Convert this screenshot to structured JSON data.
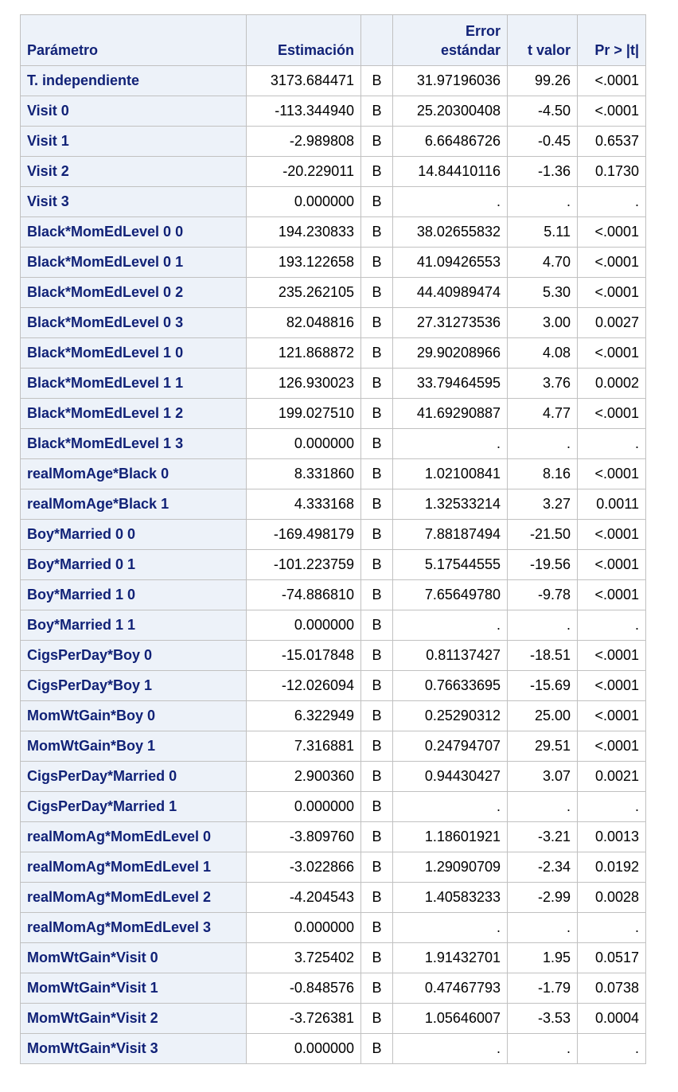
{
  "headers": {
    "parameter": "Parámetro",
    "estimate": "Estimación",
    "flag": "",
    "stderr_line1": "Error",
    "stderr_line2": "estándar",
    "tvalue": "t valor",
    "pvalue": "Pr > |t|"
  },
  "rows": [
    {
      "param": "T. independiente",
      "estimate": "3173.684471",
      "flag": "B",
      "stderr": "31.97196036",
      "t": "99.26",
      "p": "<.0001"
    },
    {
      "param": "Visit 0",
      "estimate": "-113.344940",
      "flag": "B",
      "stderr": "25.20300408",
      "t": "-4.50",
      "p": "<.0001"
    },
    {
      "param": "Visit 1",
      "estimate": "-2.989808",
      "flag": "B",
      "stderr": "6.66486726",
      "t": "-0.45",
      "p": "0.6537"
    },
    {
      "param": "Visit 2",
      "estimate": "-20.229011",
      "flag": "B",
      "stderr": "14.84410116",
      "t": "-1.36",
      "p": "0.1730"
    },
    {
      "param": "Visit 3",
      "estimate": "0.000000",
      "flag": "B",
      "stderr": ".",
      "t": ".",
      "p": "."
    },
    {
      "param": "Black*MomEdLevel 0 0",
      "estimate": "194.230833",
      "flag": "B",
      "stderr": "38.02655832",
      "t": "5.11",
      "p": "<.0001"
    },
    {
      "param": "Black*MomEdLevel 0 1",
      "estimate": "193.122658",
      "flag": "B",
      "stderr": "41.09426553",
      "t": "4.70",
      "p": "<.0001"
    },
    {
      "param": "Black*MomEdLevel 0 2",
      "estimate": "235.262105",
      "flag": "B",
      "stderr": "44.40989474",
      "t": "5.30",
      "p": "<.0001"
    },
    {
      "param": "Black*MomEdLevel 0 3",
      "estimate": "82.048816",
      "flag": "B",
      "stderr": "27.31273536",
      "t": "3.00",
      "p": "0.0027"
    },
    {
      "param": "Black*MomEdLevel 1 0",
      "estimate": "121.868872",
      "flag": "B",
      "stderr": "29.90208966",
      "t": "4.08",
      "p": "<.0001"
    },
    {
      "param": "Black*MomEdLevel 1 1",
      "estimate": "126.930023",
      "flag": "B",
      "stderr": "33.79464595",
      "t": "3.76",
      "p": "0.0002"
    },
    {
      "param": "Black*MomEdLevel 1 2",
      "estimate": "199.027510",
      "flag": "B",
      "stderr": "41.69290887",
      "t": "4.77",
      "p": "<.0001"
    },
    {
      "param": "Black*MomEdLevel 1 3",
      "estimate": "0.000000",
      "flag": "B",
      "stderr": ".",
      "t": ".",
      "p": "."
    },
    {
      "param": "realMomAge*Black 0",
      "estimate": "8.331860",
      "flag": "B",
      "stderr": "1.02100841",
      "t": "8.16",
      "p": "<.0001"
    },
    {
      "param": "realMomAge*Black 1",
      "estimate": "4.333168",
      "flag": "B",
      "stderr": "1.32533214",
      "t": "3.27",
      "p": "0.0011"
    },
    {
      "param": "Boy*Married 0 0",
      "estimate": "-169.498179",
      "flag": "B",
      "stderr": "7.88187494",
      "t": "-21.50",
      "p": "<.0001"
    },
    {
      "param": "Boy*Married 0 1",
      "estimate": "-101.223759",
      "flag": "B",
      "stderr": "5.17544555",
      "t": "-19.56",
      "p": "<.0001"
    },
    {
      "param": "Boy*Married 1 0",
      "estimate": "-74.886810",
      "flag": "B",
      "stderr": "7.65649780",
      "t": "-9.78",
      "p": "<.0001"
    },
    {
      "param": "Boy*Married 1 1",
      "estimate": "0.000000",
      "flag": "B",
      "stderr": ".",
      "t": ".",
      "p": "."
    },
    {
      "param": "CigsPerDay*Boy 0",
      "estimate": "-15.017848",
      "flag": "B",
      "stderr": "0.81137427",
      "t": "-18.51",
      "p": "<.0001"
    },
    {
      "param": "CigsPerDay*Boy 1",
      "estimate": "-12.026094",
      "flag": "B",
      "stderr": "0.76633695",
      "t": "-15.69",
      "p": "<.0001"
    },
    {
      "param": "MomWtGain*Boy 0",
      "estimate": "6.322949",
      "flag": "B",
      "stderr": "0.25290312",
      "t": "25.00",
      "p": "<.0001"
    },
    {
      "param": "MomWtGain*Boy 1",
      "estimate": "7.316881",
      "flag": "B",
      "stderr": "0.24794707",
      "t": "29.51",
      "p": "<.0001"
    },
    {
      "param": "CigsPerDay*Married 0",
      "estimate": "2.900360",
      "flag": "B",
      "stderr": "0.94430427",
      "t": "3.07",
      "p": "0.0021"
    },
    {
      "param": "CigsPerDay*Married 1",
      "estimate": "0.000000",
      "flag": "B",
      "stderr": ".",
      "t": ".",
      "p": "."
    },
    {
      "param": "realMomAg*MomEdLevel 0",
      "estimate": "-3.809760",
      "flag": "B",
      "stderr": "1.18601921",
      "t": "-3.21",
      "p": "0.0013"
    },
    {
      "param": "realMomAg*MomEdLevel 1",
      "estimate": "-3.022866",
      "flag": "B",
      "stderr": "1.29090709",
      "t": "-2.34",
      "p": "0.0192"
    },
    {
      "param": "realMomAg*MomEdLevel 2",
      "estimate": "-4.204543",
      "flag": "B",
      "stderr": "1.40583233",
      "t": "-2.99",
      "p": "0.0028"
    },
    {
      "param": "realMomAg*MomEdLevel 3",
      "estimate": "0.000000",
      "flag": "B",
      "stderr": ".",
      "t": ".",
      "p": "."
    },
    {
      "param": "MomWtGain*Visit 0",
      "estimate": "3.725402",
      "flag": "B",
      "stderr": "1.91432701",
      "t": "1.95",
      "p": "0.0517"
    },
    {
      "param": "MomWtGain*Visit 1",
      "estimate": "-0.848576",
      "flag": "B",
      "stderr": "0.47467793",
      "t": "-1.79",
      "p": "0.0738"
    },
    {
      "param": "MomWtGain*Visit 2",
      "estimate": "-3.726381",
      "flag": "B",
      "stderr": "1.05646007",
      "t": "-3.53",
      "p": "0.0004"
    },
    {
      "param": "MomWtGain*Visit 3",
      "estimate": "0.000000",
      "flag": "B",
      "stderr": ".",
      "t": ".",
      "p": "."
    }
  ],
  "colors": {
    "header_bg": "#edf2f9",
    "header_text": "#112277",
    "border": "#c1c1c1"
  }
}
